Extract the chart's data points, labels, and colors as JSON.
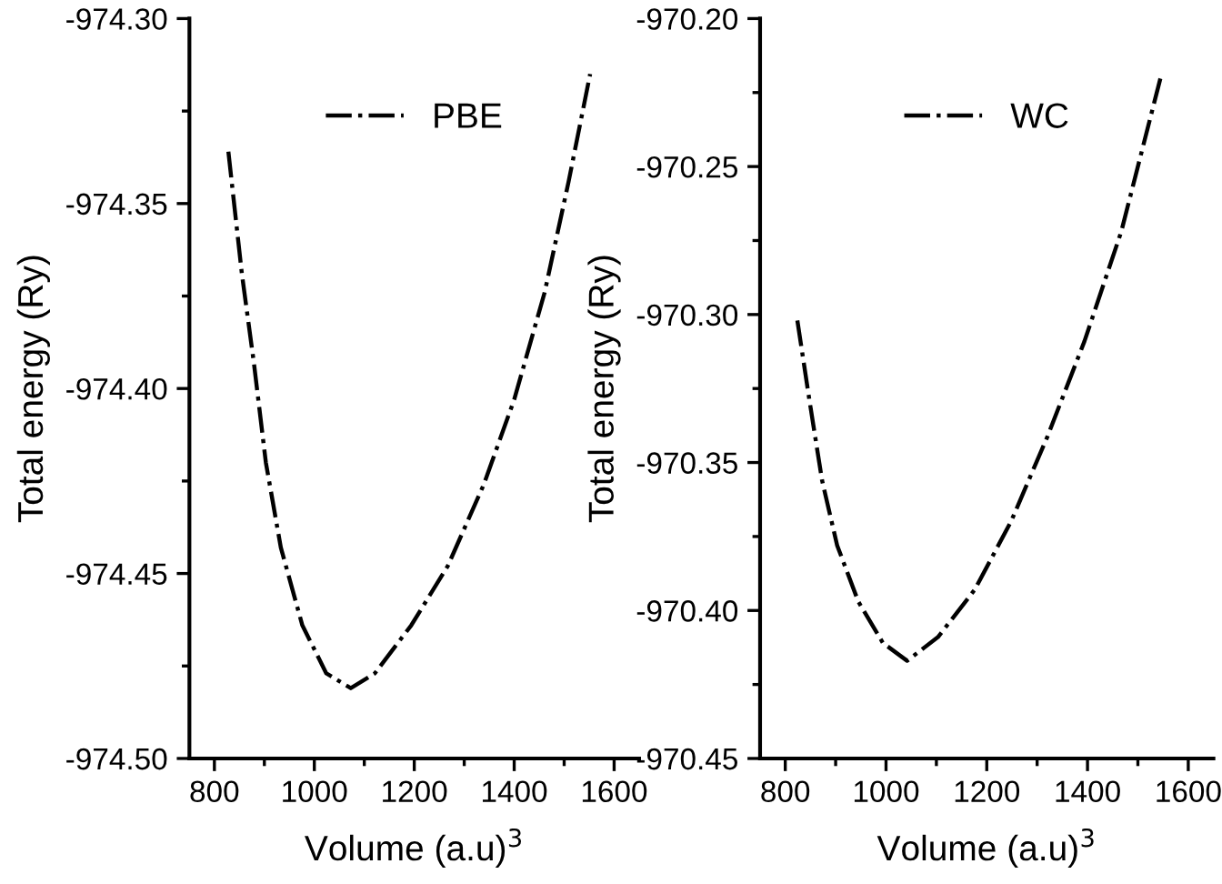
{
  "chart_data": [
    {
      "type": "line",
      "xlabel": "Volume (a.u)$^{3}$",
      "ylabel": "Total energy (Ry)",
      "legend": "top",
      "line_style": "dashdot",
      "marker": "none",
      "grid": false,
      "series": [
        {
          "name": "PBE",
          "color": "#000000",
          "x": [
            828,
            855,
            879,
            903,
            933,
            976,
            1024,
            1073,
            1121,
            1194,
            1267,
            1339,
            1400,
            1461,
            1509,
            1552
          ],
          "values": [
            -974.336,
            -974.369,
            -974.393,
            -974.42,
            -974.443,
            -974.464,
            -974.477,
            -974.481,
            -974.477,
            -974.464,
            -974.448,
            -974.426,
            -974.403,
            -974.374,
            -974.344,
            -974.315
          ]
        }
      ],
      "xlim": [
        750,
        1650
      ],
      "xticks": [
        800,
        1000,
        1200,
        1400,
        1600
      ],
      "ylim": [
        -974.5,
        -974.3
      ],
      "yticks": [
        {
          "value": -974.5,
          "label": "-974.50"
        },
        {
          "value": -974.45,
          "label": "-974.45"
        },
        {
          "value": -974.4,
          "label": "-974.40"
        },
        {
          "value": -974.35,
          "label": "-974.35"
        },
        {
          "value": -974.3,
          "label": "-974.30"
        }
      ]
    },
    {
      "type": "line",
      "xlabel": "Volume (a.u)$^{3}$",
      "ylabel": "Total energy (Ry)",
      "legend": "top",
      "line_style": "dashdot",
      "marker": "none",
      "grid": false,
      "series": [
        {
          "name": "WC",
          "color": "#000000",
          "x": [
            824,
            848,
            873,
            903,
            945,
            994,
            1042,
            1103,
            1176,
            1248,
            1321,
            1394,
            1467,
            1545
          ],
          "values": [
            -970.302,
            -970.329,
            -970.356,
            -970.378,
            -970.397,
            -970.411,
            -970.417,
            -970.409,
            -970.393,
            -970.37,
            -970.341,
            -970.309,
            -970.272,
            -970.22
          ]
        }
      ],
      "xlim": [
        750,
        1650
      ],
      "xticks": [
        800,
        1000,
        1200,
        1400,
        1600
      ],
      "ylim": [
        -970.45,
        -970.2
      ],
      "yticks": [
        {
          "value": -970.45,
          "label": "-970.45"
        },
        {
          "value": -970.4,
          "label": "-970.40"
        },
        {
          "value": -970.35,
          "label": "-970.35"
        },
        {
          "value": -970.3,
          "label": "-970.30"
        },
        {
          "value": -970.25,
          "label": "-970.25"
        },
        {
          "value": -970.2,
          "label": "-970.20"
        }
      ]
    }
  ]
}
